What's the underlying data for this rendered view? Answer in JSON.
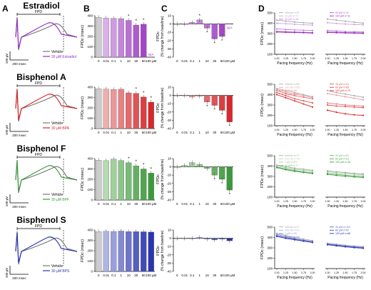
{
  "panel_labels": [
    "A",
    "B",
    "C",
    "D"
  ],
  "compounds": [
    {
      "name": "Estradiol",
      "color": "#9b2fc2",
      "light": "#e3c6ef",
      "trace_legend": [
        "Vehicle",
        "30 µM Estradiol"
      ],
      "d_legend": [
        "Vehicle n=57",
        "10 µM n=71",
        "30 µM n=18",
        "60 µM n=11",
        "100 µM n=11"
      ]
    },
    {
      "name": "Bisphenol  A",
      "color": "#d8282c",
      "light": "#f3c3c3",
      "trace_legend": [
        "Vehicle",
        "30 µM BPA"
      ],
      "d_legend": [
        "Vehicle n=65",
        "100 nM n=65",
        "1 µM n=95",
        "10 µM n=64",
        "30 µM n=51",
        "60 µM n=65",
        "100 µM n=70"
      ]
    },
    {
      "name": "Bisphenol  F",
      "color": "#3c9a3c",
      "light": "#c8e6c3",
      "trace_legend": [
        "Vehicle",
        "30 µM BPF"
      ],
      "d_legend": [
        "Vehicle n=71",
        "100 nM n=59",
        "1 µM n=53",
        "10 µM n=77",
        "30 µM n=51",
        "60 µM n=51",
        "100 µM n=38"
      ]
    },
    {
      "name": "Bisphenol  S",
      "color": "#2a35b0",
      "light": "#c5c9ee",
      "trace_legend": [
        "Vehicle",
        "30 µM BPS"
      ],
      "d_legend": [
        "Vehicle n=77",
        "100 nM n=57",
        "1 µM n=90",
        "10 µM n=100",
        "30 µM n=101",
        "60 µM n=57",
        "100 µM n=68"
      ]
    }
  ],
  "trace_labels": {
    "fpd": "FPD",
    "yscale": "100 µV",
    "xscale": "200 msec"
  },
  "panel_b": {
    "ylabel": "FPDc (msec)",
    "yticks": [
      "0",
      "100",
      "200",
      "300",
      "400"
    ]
  },
  "panel_c": {
    "ylabel": "FPDc\n(% change from baseline)",
    "yticks": [
      "10",
      "0",
      "-10",
      "-20",
      "-30",
      "-40"
    ]
  },
  "panel_d": {
    "ylabel": "FPDc (msec)",
    "yticks": [
      "100",
      "200",
      "300",
      "400",
      "500"
    ],
    "xlabel": "Pacing frequency (Hz)",
    "xticks": [
      "1.00",
      "1.25",
      "1.50",
      "1.75",
      "2.00"
    ]
  },
  "chart_data": [
    {
      "type": "bar",
      "title": "Estradiol — FPDc",
      "ylabel": "FPDc (msec)",
      "ylim": [
        0,
        400
      ],
      "categories": [
        "0",
        "0.01",
        "0.1",
        "1",
        "10",
        "30",
        "60",
        "100 µM"
      ],
      "values": [
        385,
        378,
        375,
        372,
        355,
        310,
        318,
        null
      ],
      "significant": [
        false,
        false,
        false,
        false,
        true,
        true,
        true,
        false
      ],
      "na_label": "N/A"
    },
    {
      "type": "bar",
      "title": "Estradiol — FPDc % change",
      "ylabel": "FPDc (% change from baseline)",
      "ylim": [
        -40,
        10
      ],
      "categories": [
        "0",
        "0.01",
        "0.1",
        "1",
        "10",
        "30",
        "60",
        "100 µM"
      ],
      "values": [
        0,
        0,
        2,
        5,
        -5,
        -18,
        -15,
        null
      ],
      "significant": [
        false,
        false,
        false,
        true,
        true,
        true,
        true,
        false
      ],
      "na_label": "N/A"
    },
    {
      "type": "bar",
      "title": "Bisphenol A — FPDc",
      "ylabel": "FPDc (msec)",
      "ylim": [
        0,
        400
      ],
      "categories": [
        "0",
        "0.01",
        "0.1",
        "1",
        "10",
        "30",
        "60",
        "100 µM"
      ],
      "values": [
        385,
        382,
        378,
        380,
        345,
        340,
        305,
        255
      ],
      "significant": [
        false,
        false,
        false,
        false,
        false,
        true,
        true,
        true
      ]
    },
    {
      "type": "bar",
      "title": "Bisphenol A — FPDc % change",
      "ylabel": "FPDc (% change from baseline)",
      "ylim": [
        -40,
        10
      ],
      "categories": [
        "0",
        "0.01",
        "0.1",
        "1",
        "10",
        "30",
        "60",
        "100 µM"
      ],
      "values": [
        0,
        0,
        -2,
        -1,
        -8,
        -12,
        -18,
        -32
      ],
      "significant": [
        false,
        false,
        false,
        false,
        true,
        true,
        true,
        true
      ]
    },
    {
      "type": "bar",
      "title": "Bisphenol F — FPDc",
      "ylabel": "FPDc (msec)",
      "ylim": [
        0,
        400
      ],
      "categories": [
        "0",
        "0.01",
        "0.1",
        "1",
        "10",
        "30",
        "60",
        "100 µM"
      ],
      "values": [
        385,
        380,
        395,
        382,
        360,
        330,
        300,
        260
      ],
      "significant": [
        false,
        false,
        false,
        false,
        true,
        true,
        true,
        true
      ]
    },
    {
      "type": "bar",
      "title": "Bisphenol F — FPDc % change",
      "ylabel": "FPDc (% change from baseline)",
      "ylim": [
        -40,
        10
      ],
      "categories": [
        "0",
        "0.01",
        "0.1",
        "1",
        "10",
        "30",
        "60",
        "100 µM"
      ],
      "values": [
        0,
        2,
        5,
        3,
        -2,
        -10,
        -15,
        -28
      ],
      "significant": [
        false,
        false,
        false,
        false,
        false,
        true,
        true,
        true
      ]
    },
    {
      "type": "bar",
      "title": "Bisphenol S — FPDc",
      "ylabel": "FPDc (msec)",
      "ylim": [
        0,
        400
      ],
      "categories": [
        "0",
        "0.01",
        "0.1",
        "1",
        "10",
        "30",
        "60",
        "100 µM"
      ],
      "values": [
        385,
        388,
        386,
        390,
        385,
        385,
        383,
        380
      ],
      "significant": [
        false,
        false,
        false,
        false,
        false,
        false,
        false,
        false
      ]
    },
    {
      "type": "bar",
      "title": "Bisphenol S — FPDc % change",
      "ylabel": "FPDc (% change from baseline)",
      "ylim": [
        -40,
        10
      ],
      "categories": [
        "0",
        "0.01",
        "0.1",
        "1",
        "10",
        "30",
        "60",
        "100 µM"
      ],
      "values": [
        0,
        0,
        0,
        1,
        -1,
        -2,
        -1,
        -3
      ],
      "significant": [
        false,
        false,
        false,
        false,
        false,
        false,
        false,
        false
      ]
    },
    {
      "type": "line",
      "title": "Estradiol — pacing",
      "xlabel": "Pacing frequency (Hz)",
      "ylabel": "FPDc (msec)",
      "x": [
        1.0,
        1.25,
        1.5,
        1.75,
        2.0
      ],
      "ylim": [
        100,
        500
      ],
      "left_series": [
        [
          430,
          420,
          412,
          405,
          400
        ],
        [
          400,
          395,
          390,
          385,
          382
        ],
        [
          345,
          340,
          335,
          332,
          330
        ],
        [
          320,
          318,
          315,
          312,
          310
        ],
        [
          315,
          312,
          310,
          308,
          305
        ]
      ],
      "right_series": [
        [
          440,
          430,
          420,
          410,
          400
        ],
        [
          405,
          398,
          392,
          388,
          384
        ],
        [
          330,
          325,
          320,
          318,
          315
        ],
        [
          315,
          312,
          310,
          308,
          306
        ],
        [
          310,
          308,
          306,
          304,
          302
        ]
      ]
    },
    {
      "type": "line",
      "title": "Bisphenol A — pacing",
      "xlabel": "Pacing frequency (Hz)",
      "ylabel": "FPDc (msec)",
      "x": [
        1.0,
        1.25,
        1.5,
        1.75,
        2.0
      ],
      "ylim": [
        100,
        500
      ],
      "left_series": [
        [
          460,
          440,
          420,
          400,
          380
        ],
        [
          450,
          425,
          405,
          390,
          370
        ],
        [
          440,
          410,
          390,
          375,
          360
        ],
        [
          420,
          390,
          360,
          340,
          320
        ],
        [
          400,
          370,
          340,
          310,
          280
        ]
      ],
      "right_series": [
        [
          440,
          420,
          405,
          390,
          375
        ],
        [
          410,
          395,
          380,
          365,
          350
        ],
        [
          320,
          310,
          300,
          295,
          290
        ],
        [
          300,
          290,
          285,
          280,
          275
        ],
        [
          250,
          230,
          215,
          205,
          200
        ]
      ]
    },
    {
      "type": "line",
      "title": "Bisphenol F — pacing",
      "xlabel": "Pacing frequency (Hz)",
      "ylabel": "FPDc (msec)",
      "x": [
        1.0,
        1.25,
        1.5,
        1.75,
        2.0
      ],
      "ylim": [
        100,
        500
      ],
      "left_series": [
        [
          410,
          395,
          380,
          370,
          360
        ],
        [
          400,
          385,
          370,
          360,
          350
        ],
        [
          390,
          372,
          358,
          345,
          335
        ],
        [
          385,
          365,
          350,
          338,
          328
        ]
      ],
      "right_series": [
        [
          355,
          345,
          338,
          330,
          325
        ],
        [
          345,
          335,
          328,
          320,
          315
        ],
        [
          330,
          320,
          312,
          305,
          300
        ],
        [
          320,
          310,
          302,
          295,
          290
        ]
      ]
    },
    {
      "type": "line",
      "title": "Bisphenol S — pacing",
      "xlabel": "Pacing frequency (Hz)",
      "ylabel": "FPDc (msec)",
      "x": [
        1.0,
        1.25,
        1.5,
        1.75,
        2.0
      ],
      "ylim": [
        100,
        500
      ],
      "left_series": [
        [
          440,
          420,
          400,
          385,
          370
        ],
        [
          430,
          410,
          390,
          375,
          362
        ],
        [
          420,
          400,
          385,
          370,
          358
        ],
        [
          410,
          392,
          378,
          365,
          352
        ]
      ],
      "right_series": [
        [
          345,
          335,
          325,
          318,
          312
        ],
        [
          340,
          330,
          320,
          313,
          306
        ],
        [
          335,
          325,
          315,
          308,
          300
        ],
        [
          330,
          320,
          310,
          302,
          296
        ]
      ]
    }
  ]
}
